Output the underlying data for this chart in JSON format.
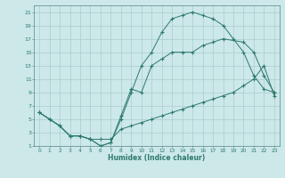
{
  "xlabel": "Humidex (Indice chaleur)",
  "bg_color": "#cce8e8",
  "line_color": "#2d7a6e",
  "grid_color": "#aacece",
  "xlim": [
    -0.5,
    23.5
  ],
  "ylim": [
    1,
    22
  ],
  "xticks": [
    0,
    1,
    2,
    3,
    4,
    5,
    6,
    7,
    8,
    9,
    10,
    11,
    12,
    13,
    14,
    15,
    16,
    17,
    18,
    19,
    20,
    21,
    22,
    23
  ],
  "yticks": [
    1,
    3,
    5,
    7,
    9,
    11,
    13,
    15,
    17,
    19,
    21
  ],
  "line1_x": [
    0,
    1,
    2,
    3,
    4,
    5,
    6,
    7,
    8,
    9,
    10,
    11,
    12,
    13,
    14,
    15,
    16,
    17,
    18,
    19,
    20,
    21,
    22,
    23
  ],
  "line1_y": [
    6,
    5,
    4,
    2.5,
    2.5,
    2,
    1,
    1.5,
    5,
    9,
    13,
    15,
    18,
    20,
    20.5,
    21,
    20.5,
    20,
    19,
    17,
    15,
    11.5,
    9.5,
    9
  ],
  "line2_x": [
    0,
    1,
    2,
    3,
    4,
    5,
    6,
    7,
    8,
    9,
    10,
    11,
    12,
    13,
    14,
    15,
    16,
    17,
    18,
    20,
    21,
    22,
    23
  ],
  "line2_y": [
    6,
    5,
    4,
    2.5,
    2.5,
    2,
    1,
    1.5,
    5.5,
    9.5,
    9,
    13,
    14,
    15,
    15,
    15,
    16,
    16.5,
    17,
    16.5,
    15,
    11.5,
    9
  ],
  "line3_x": [
    0,
    1,
    2,
    3,
    4,
    5,
    6,
    7,
    8,
    9,
    10,
    11,
    12,
    13,
    14,
    15,
    16,
    17,
    18,
    19,
    20,
    21,
    22,
    23
  ],
  "line3_y": [
    6,
    5,
    4,
    2.5,
    2.5,
    2,
    2,
    2,
    3.5,
    4,
    4.5,
    5,
    5.5,
    6,
    6.5,
    7,
    7.5,
    8,
    8.5,
    9,
    10,
    11,
    13,
    8.5
  ]
}
